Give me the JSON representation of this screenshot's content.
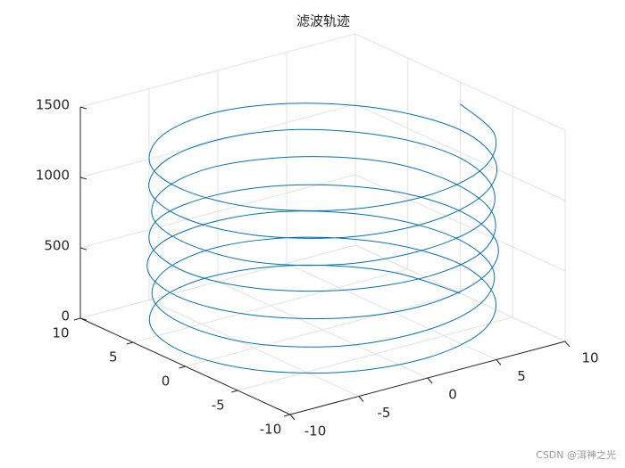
{
  "chart_data": {
    "type": "line3d",
    "title": "滤波轨迹",
    "watermark": "CSDN @洱神之光",
    "color": "#0072bd",
    "grid": true,
    "xlim": [
      -10,
      10
    ],
    "ylim": [
      -10,
      10
    ],
    "zlim": [
      0,
      1500
    ],
    "xticks": [
      -10,
      -5,
      0,
      5,
      10
    ],
    "yticks": [
      -10,
      -5,
      0,
      5,
      10
    ],
    "zticks": [
      0,
      500,
      1000,
      1500
    ],
    "x": [
      10,
      8.7,
      5,
      0,
      -5,
      -8.7,
      -10,
      -8.7,
      -5,
      0,
      5,
      8.7,
      10.2,
      8.8,
      5.1,
      0.1,
      -4.9,
      -8.6,
      -9.9,
      -8.8,
      -5.1,
      0,
      4.9,
      8.6,
      9.9,
      8.6,
      5,
      0.2,
      -5,
      -8.8,
      -10.1,
      -8.7,
      -5,
      -0.1,
      5.1,
      8.8,
      10.1,
      8.7,
      4.9,
      0,
      -5.1,
      -8.7,
      -10,
      -8.6,
      -4.9,
      0.1,
      5,
      8.7,
      9.9,
      8.8,
      5.1,
      -0.1,
      -5,
      -8.6,
      -9.8,
      -8.7,
      -5.1,
      0,
      5,
      8.6,
      10,
      8.7,
      5,
      0,
      -4.9,
      -8.7,
      -10.1,
      -8.8,
      -5,
      0.1,
      5.1,
      8.7,
      10.1,
      8.6,
      4.9,
      0,
      -5,
      -8.8,
      -10,
      -8.7,
      -5,
      0,
      5,
      8.7,
      10
    ],
    "y": [
      0,
      5,
      8.7,
      10,
      8.7,
      5,
      0,
      -5,
      -8.7,
      -10,
      -8.7,
      -5,
      0.1,
      5.1,
      8.8,
      10.1,
      8.6,
      4.9,
      0,
      -5.1,
      -8.8,
      -9.9,
      -8.6,
      -5,
      -0.1,
      4.9,
      8.7,
      10,
      8.8,
      5.1,
      0.1,
      -4.9,
      -8.7,
      -10.1,
      -8.7,
      -5.1,
      0,
      5,
      8.6,
      9.9,
      8.7,
      5,
      -0.1,
      -5,
      -8.6,
      -10,
      -8.8,
      -4.9,
      0.1,
      5.1,
      8.7,
      10.1,
      8.6,
      4.9,
      0,
      -5.1,
      -8.7,
      -9.9,
      -8.7,
      -5,
      0,
      4.9,
      8.8,
      10,
      8.7,
      5.1,
      0.1,
      -5,
      -8.8,
      -10,
      -8.6,
      -5.1,
      -0.1,
      5,
      8.7,
      10.1,
      8.7,
      4.9,
      0,
      -5,
      -8.7,
      -10,
      -8.7,
      -5,
      0
    ],
    "z": [
      0,
      16,
      32,
      48,
      64,
      80,
      96,
      112,
      128,
      144,
      160,
      176,
      192,
      208,
      224,
      240,
      256,
      272,
      288,
      304,
      320,
      336,
      352,
      368,
      384,
      400,
      416,
      432,
      448,
      464,
      480,
      496,
      512,
      528,
      544,
      560,
      576,
      592,
      608,
      624,
      640,
      656,
      672,
      688,
      704,
      720,
      736,
      752,
      768,
      784,
      800,
      816,
      832,
      848,
      864,
      880,
      896,
      912,
      928,
      944,
      960,
      976,
      992,
      1008,
      1024,
      1040,
      1056,
      1072,
      1088,
      1104,
      1120,
      1136,
      1152,
      1168,
      1184,
      1200,
      1216,
      1232,
      1248,
      1264,
      1280,
      1296,
      1312,
      1328,
      1344
    ]
  }
}
